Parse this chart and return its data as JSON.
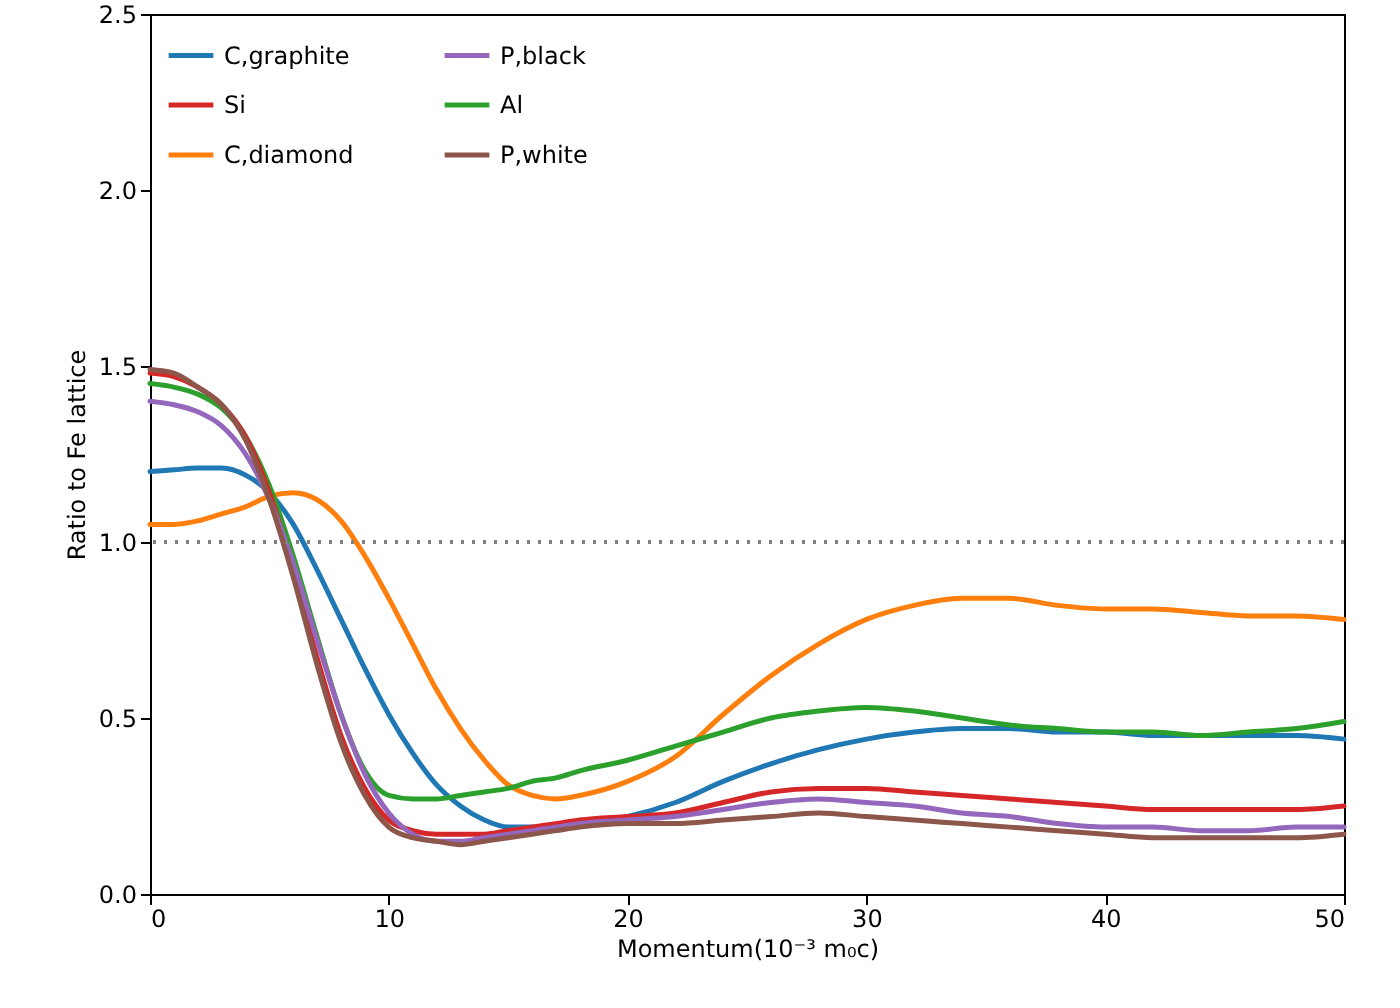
{
  "chart_data": {
    "type": "line",
    "xlabel": "Momentum(10⁻³ m₀c)",
    "ylabel": "Ratio to Fe lattice",
    "x": [
      0,
      1,
      2,
      3,
      4,
      5,
      6,
      7,
      8,
      9,
      10,
      11,
      12,
      13,
      14,
      15,
      16,
      17,
      18,
      20,
      22,
      24,
      26,
      28,
      30,
      32,
      34,
      36,
      38,
      40,
      42,
      44,
      46,
      48,
      50
    ],
    "series": [
      {
        "name": "C,graphite",
        "color": "#1f77b4",
        "values": [
          1.2,
          1.205,
          1.21,
          1.21,
          1.19,
          1.14,
          1.05,
          0.92,
          0.78,
          0.64,
          0.51,
          0.4,
          0.31,
          0.25,
          0.21,
          0.19,
          0.19,
          0.19,
          0.2,
          0.22,
          0.26,
          0.32,
          0.37,
          0.41,
          0.44,
          0.46,
          0.47,
          0.47,
          0.46,
          0.46,
          0.45,
          0.45,
          0.45,
          0.45,
          0.44
        ]
      },
      {
        "name": "C,diamond",
        "color": "#ff7f0e",
        "values": [
          1.05,
          1.05,
          1.06,
          1.08,
          1.1,
          1.13,
          1.14,
          1.12,
          1.06,
          0.96,
          0.84,
          0.71,
          0.58,
          0.47,
          0.38,
          0.31,
          0.28,
          0.27,
          0.28,
          0.32,
          0.39,
          0.51,
          0.62,
          0.71,
          0.78,
          0.82,
          0.84,
          0.84,
          0.82,
          0.81,
          0.81,
          0.8,
          0.79,
          0.79,
          0.78
        ]
      },
      {
        "name": "Al",
        "color": "#2ca02c",
        "values": [
          1.45,
          1.44,
          1.42,
          1.38,
          1.3,
          1.16,
          0.96,
          0.73,
          0.51,
          0.35,
          0.28,
          0.27,
          0.27,
          0.28,
          0.29,
          0.3,
          0.32,
          0.33,
          0.35,
          0.38,
          0.42,
          0.46,
          0.5,
          0.52,
          0.53,
          0.52,
          0.5,
          0.48,
          0.47,
          0.46,
          0.46,
          0.45,
          0.46,
          0.47,
          0.49
        ]
      },
      {
        "name": "Si",
        "color": "#d62728",
        "values": [
          1.48,
          1.47,
          1.44,
          1.39,
          1.3,
          1.14,
          0.92,
          0.67,
          0.45,
          0.3,
          0.21,
          0.18,
          0.17,
          0.17,
          0.17,
          0.18,
          0.19,
          0.2,
          0.21,
          0.22,
          0.23,
          0.26,
          0.29,
          0.3,
          0.3,
          0.29,
          0.28,
          0.27,
          0.26,
          0.25,
          0.24,
          0.24,
          0.24,
          0.24,
          0.25
        ]
      },
      {
        "name": "P,black",
        "color": "#9467bd",
        "values": [
          1.4,
          1.39,
          1.37,
          1.33,
          1.25,
          1.12,
          0.94,
          0.72,
          0.51,
          0.34,
          0.23,
          0.17,
          0.15,
          0.15,
          0.16,
          0.17,
          0.18,
          0.19,
          0.2,
          0.21,
          0.22,
          0.24,
          0.26,
          0.27,
          0.26,
          0.25,
          0.23,
          0.22,
          0.2,
          0.19,
          0.19,
          0.18,
          0.18,
          0.19,
          0.19
        ]
      },
      {
        "name": "P,white",
        "color": "#8c564b",
        "values": [
          1.49,
          1.48,
          1.44,
          1.39,
          1.29,
          1.12,
          0.9,
          0.65,
          0.43,
          0.28,
          0.19,
          0.16,
          0.15,
          0.14,
          0.15,
          0.16,
          0.17,
          0.18,
          0.19,
          0.2,
          0.2,
          0.21,
          0.22,
          0.23,
          0.22,
          0.21,
          0.2,
          0.19,
          0.18,
          0.17,
          0.16,
          0.16,
          0.16,
          0.16,
          0.17
        ]
      }
    ],
    "xlim": [
      0,
      50
    ],
    "xticks": [
      0,
      10,
      20,
      30,
      40,
      50
    ],
    "ylim": [
      0,
      2.5
    ],
    "yticks": [
      {
        "value": 0,
        "label": "0.0"
      },
      {
        "value": 0.5,
        "label": "0.5"
      },
      {
        "value": 1,
        "label": "1.0"
      },
      {
        "value": 1.5,
        "label": "1.5"
      },
      {
        "value": 2,
        "label": "2.0"
      },
      {
        "value": 2.5,
        "label": "2.5"
      }
    ],
    "ref_lines": [
      {
        "axis": "y",
        "value": 1,
        "label": null,
        "color": "#808080",
        "line_style": "dotted"
      }
    ],
    "legend": "top left",
    "grid": false,
    "marker": "none",
    "line_style": "solid"
  }
}
